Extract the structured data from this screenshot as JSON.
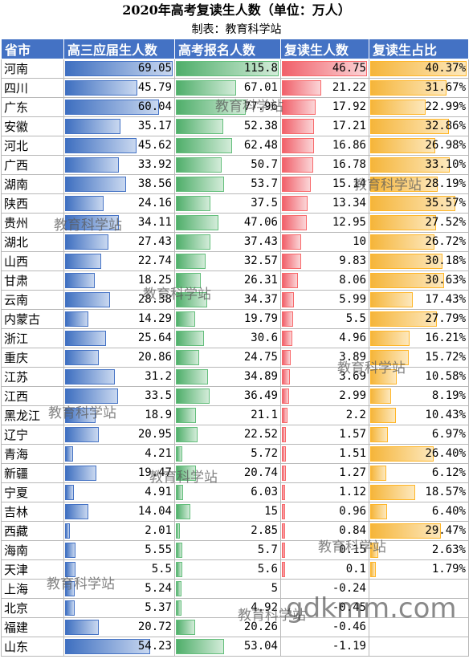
{
  "title": "2020年高考复读生人数（单位：万人）",
  "subtitle": "制表：教育科学站",
  "headers": [
    "省市",
    "高三应届生人数",
    "高考报名人数",
    "复读生人数",
    "复读生占比"
  ],
  "rows": [
    {
      "province": "河南",
      "graduates": "69.05",
      "registered": "115.8",
      "repeaters": "46.75",
      "ratio": "40.37%"
    },
    {
      "province": "四川",
      "graduates": "45.79",
      "registered": "67.01",
      "repeaters": "21.22",
      "ratio": "31.67%"
    },
    {
      "province": "广东",
      "graduates": "60.04",
      "registered": "77.96",
      "repeaters": "17.92",
      "ratio": "22.99%"
    },
    {
      "province": "安徽",
      "graduates": "35.17",
      "registered": "52.38",
      "repeaters": "17.21",
      "ratio": "32.86%"
    },
    {
      "province": "河北",
      "graduates": "45.62",
      "registered": "62.48",
      "repeaters": "16.86",
      "ratio": "26.98%"
    },
    {
      "province": "广西",
      "graduates": "33.92",
      "registered": "50.7",
      "repeaters": "16.78",
      "ratio": "33.10%"
    },
    {
      "province": "湖南",
      "graduates": "38.56",
      "registered": "53.7",
      "repeaters": "15.14",
      "ratio": "28.19%"
    },
    {
      "province": "陕西",
      "graduates": "24.16",
      "registered": "37.5",
      "repeaters": "13.34",
      "ratio": "35.57%"
    },
    {
      "province": "贵州",
      "graduates": "34.11",
      "registered": "47.06",
      "repeaters": "12.95",
      "ratio": "27.52%"
    },
    {
      "province": "湖北",
      "graduates": "27.43",
      "registered": "37.43",
      "repeaters": "10",
      "ratio": "26.72%"
    },
    {
      "province": "山西",
      "graduates": "22.74",
      "registered": "32.57",
      "repeaters": "9.83",
      "ratio": "30.18%"
    },
    {
      "province": "甘肃",
      "graduates": "18.25",
      "registered": "26.31",
      "repeaters": "8.06",
      "ratio": "30.63%"
    },
    {
      "province": "云南",
      "graduates": "28.38",
      "registered": "34.37",
      "repeaters": "5.99",
      "ratio": "17.43%"
    },
    {
      "province": "内蒙古",
      "graduates": "14.29",
      "registered": "19.79",
      "repeaters": "5.5",
      "ratio": "27.79%"
    },
    {
      "province": "浙江",
      "graduates": "25.64",
      "registered": "30.6",
      "repeaters": "4.96",
      "ratio": "16.21%"
    },
    {
      "province": "重庆",
      "graduates": "20.86",
      "registered": "24.75",
      "repeaters": "3.89",
      "ratio": "15.72%"
    },
    {
      "province": "江苏",
      "graduates": "31.2",
      "registered": "34.89",
      "repeaters": "3.69",
      "ratio": "10.58%"
    },
    {
      "province": "江西",
      "graduates": "33.5",
      "registered": "36.49",
      "repeaters": "2.99",
      "ratio": "8.19%"
    },
    {
      "province": "黑龙江",
      "graduates": "18.9",
      "registered": "21.1",
      "repeaters": "2.2",
      "ratio": "10.43%"
    },
    {
      "province": "辽宁",
      "graduates": "20.95",
      "registered": "22.52",
      "repeaters": "1.57",
      "ratio": "6.97%"
    },
    {
      "province": "青海",
      "graduates": "4.21",
      "registered": "5.72",
      "repeaters": "1.51",
      "ratio": "26.40%"
    },
    {
      "province": "新疆",
      "graduates": "19.47",
      "registered": "20.74",
      "repeaters": "1.27",
      "ratio": "6.12%"
    },
    {
      "province": "宁夏",
      "graduates": "4.91",
      "registered": "6.03",
      "repeaters": "1.12",
      "ratio": "18.57%"
    },
    {
      "province": "吉林",
      "graduates": "14.04",
      "registered": "15",
      "repeaters": "0.96",
      "ratio": "6.40%"
    },
    {
      "province": "西藏",
      "graduates": "2.01",
      "registered": "2.85",
      "repeaters": "0.84",
      "ratio": "29.47%"
    },
    {
      "province": "海南",
      "graduates": "5.55",
      "registered": "5.7",
      "repeaters": "0.15",
      "ratio": "2.63%"
    },
    {
      "province": "天津",
      "graduates": "5.5",
      "registered": "5.6",
      "repeaters": "0.1",
      "ratio": "1.79%"
    },
    {
      "province": "上海",
      "graduates": "5.24",
      "registered": "5",
      "repeaters": "-0.24",
      "ratio": ""
    },
    {
      "province": "北京",
      "graduates": "5.37",
      "registered": "4.92",
      "repeaters": "-0.45",
      "ratio": ""
    },
    {
      "province": "福建",
      "graduates": "20.72",
      "registered": "20.26",
      "repeaters": "-0.46",
      "ratio": ""
    },
    {
      "province": "山东",
      "graduates": "54.23",
      "registered": "53.04",
      "repeaters": "-1.19",
      "ratio": ""
    }
  ],
  "colors": {
    "header": "#4472c4",
    "graduates_bar": "#4472c4",
    "registered_bar": "#63be7b",
    "repeaters_bar": "#f8696b",
    "ratio_bar": "#ffb628"
  },
  "watermark": "教育科学站",
  "watermark_site": "gdkmm.com"
}
